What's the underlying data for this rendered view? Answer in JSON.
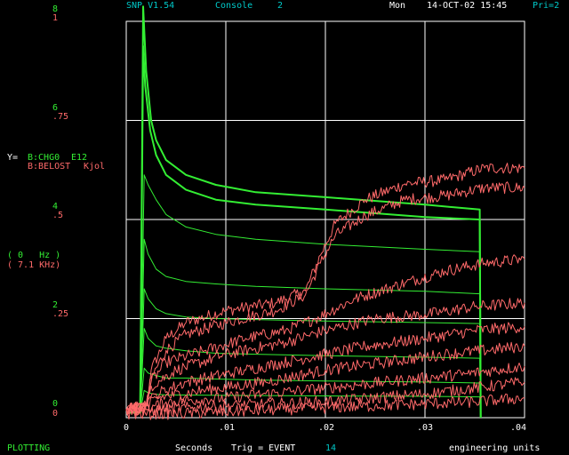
{
  "header": {
    "program": "SNP V1.54",
    "console_label": "Console",
    "console_num": "2",
    "day": "Mon",
    "datetime": "14-OCT-02 15:45",
    "priority": "Pri=2"
  },
  "y_left_green": {
    "top": "8",
    "ticks": [
      "6",
      "4",
      "2",
      "0"
    ]
  },
  "y_left_red": {
    "top": "1",
    "ticks": [
      ".75",
      ".5",
      ".25",
      "0"
    ]
  },
  "legend": {
    "prefix": "Y=",
    "ch1": "B:CHG0",
    "ch1_unit": "E12",
    "ch2": "B:BELOST",
    "ch2_unit": "Kjol"
  },
  "freq": {
    "line1": "( 0   Hz )",
    "line2": "( 7.1 KHz)"
  },
  "x_ticks": [
    "0",
    ".01",
    ".02",
    ".03",
    ".04"
  ],
  "footer": {
    "status": "PLOTTING",
    "xlabel": "Seconds",
    "trig": "Trig = EVENT",
    "event": "14",
    "units": "engineering units"
  },
  "chart_data": {
    "type": "line",
    "xlabel": "Seconds",
    "xlim": [
      0,
      0.04
    ],
    "y_left_green_lim": [
      0,
      8
    ],
    "y_left_red_lim": [
      0,
      1
    ],
    "grid": true,
    "background": "#000000",
    "series": [
      {
        "name": "B:CHG0",
        "unit": "E12",
        "color": "#33ee33",
        "axis": "left-green",
        "traces": [
          [
            [
              0,
              0.1
            ],
            [
              0.0014,
              0.1
            ],
            [
              0.0017,
              7.5
            ],
            [
              0.0019,
              6.7
            ],
            [
              0.0024,
              5.8
            ],
            [
              0.003,
              5.3
            ],
            [
              0.004,
              4.9
            ],
            [
              0.006,
              4.6
            ],
            [
              0.009,
              4.4
            ],
            [
              0.013,
              4.3
            ],
            [
              0.02,
              4.2
            ],
            [
              0.03,
              4.05
            ],
            [
              0.0355,
              4.0
            ],
            [
              0.0356,
              0
            ]
          ],
          [
            [
              0,
              0.1
            ],
            [
              0.0014,
              0.1
            ],
            [
              0.0017,
              8.3
            ],
            [
              0.002,
              7.0
            ],
            [
              0.0025,
              6.0
            ],
            [
              0.003,
              5.6
            ],
            [
              0.004,
              5.2
            ],
            [
              0.006,
              4.9
            ],
            [
              0.009,
              4.7
            ],
            [
              0.013,
              4.55
            ],
            [
              0.02,
              4.45
            ],
            [
              0.03,
              4.3
            ],
            [
              0.0355,
              4.2
            ],
            [
              0.0356,
              0
            ]
          ],
          [
            [
              0,
              0.1
            ],
            [
              0.0014,
              0.1
            ],
            [
              0.0018,
              4.9
            ],
            [
              0.0022,
              4.7
            ],
            [
              0.003,
              4.4
            ],
            [
              0.004,
              4.1
            ],
            [
              0.006,
              3.85
            ],
            [
              0.009,
              3.7
            ],
            [
              0.013,
              3.6
            ],
            [
              0.02,
              3.5
            ],
            [
              0.03,
              3.4
            ],
            [
              0.0355,
              3.35
            ],
            [
              0.0356,
              0
            ]
          ],
          [
            [
              0,
              0.1
            ],
            [
              0.0014,
              0.1
            ],
            [
              0.0018,
              3.6
            ],
            [
              0.0022,
              3.3
            ],
            [
              0.003,
              3.0
            ],
            [
              0.004,
              2.85
            ],
            [
              0.006,
              2.75
            ],
            [
              0.009,
              2.7
            ],
            [
              0.013,
              2.65
            ],
            [
              0.02,
              2.6
            ],
            [
              0.03,
              2.55
            ],
            [
              0.0355,
              2.5
            ],
            [
              0.0356,
              0
            ]
          ],
          [
            [
              0,
              0.1
            ],
            [
              0.0014,
              0.1
            ],
            [
              0.0018,
              2.6
            ],
            [
              0.0022,
              2.4
            ],
            [
              0.003,
              2.2
            ],
            [
              0.004,
              2.1
            ],
            [
              0.006,
              2.03
            ],
            [
              0.009,
              2.0
            ],
            [
              0.013,
              1.98
            ],
            [
              0.02,
              1.95
            ],
            [
              0.03,
              1.92
            ],
            [
              0.0355,
              1.9
            ],
            [
              0.0356,
              0
            ]
          ],
          [
            [
              0,
              0.1
            ],
            [
              0.0014,
              0.1
            ],
            [
              0.0018,
              1.8
            ],
            [
              0.0022,
              1.6
            ],
            [
              0.003,
              1.45
            ],
            [
              0.004,
              1.4
            ],
            [
              0.006,
              1.35
            ],
            [
              0.009,
              1.3
            ],
            [
              0.013,
              1.28
            ],
            [
              0.02,
              1.25
            ],
            [
              0.03,
              1.22
            ],
            [
              0.0355,
              1.2
            ],
            [
              0.0356,
              0
            ]
          ],
          [
            [
              0,
              0.1
            ],
            [
              0.0014,
              0.1
            ],
            [
              0.0018,
              1.0
            ],
            [
              0.0022,
              0.9
            ],
            [
              0.003,
              0.85
            ],
            [
              0.004,
              0.8
            ],
            [
              0.006,
              0.8
            ],
            [
              0.009,
              0.78
            ],
            [
              0.013,
              0.76
            ],
            [
              0.02,
              0.74
            ],
            [
              0.03,
              0.72
            ],
            [
              0.0355,
              0.7
            ],
            [
              0.0356,
              0
            ]
          ],
          [
            [
              0,
              0.1
            ],
            [
              0.0014,
              0.1
            ],
            [
              0.0018,
              0.55
            ],
            [
              0.0022,
              0.5
            ],
            [
              0.003,
              0.47
            ],
            [
              0.004,
              0.46
            ],
            [
              0.01,
              0.45
            ],
            [
              0.02,
              0.44
            ],
            [
              0.03,
              0.43
            ],
            [
              0.0355,
              0.42
            ],
            [
              0.0356,
              0
            ]
          ]
        ]
      },
      {
        "name": "B:BELOST",
        "unit": "Kjol",
        "color": "#ff6a6a",
        "axis": "left-red",
        "traces": [
          [
            [
              0,
              0.02
            ],
            [
              0.002,
              0.03
            ],
            [
              0.0025,
              0.12
            ],
            [
              0.004,
              0.2
            ],
            [
              0.006,
              0.24
            ],
            [
              0.01,
              0.27
            ],
            [
              0.015,
              0.29
            ],
            [
              0.018,
              0.32
            ],
            [
              0.0195,
              0.41
            ],
            [
              0.021,
              0.49
            ],
            [
              0.024,
              0.55
            ],
            [
              0.028,
              0.59
            ],
            [
              0.032,
              0.6
            ],
            [
              0.036,
              0.63
            ],
            [
              0.04,
              0.63
            ]
          ],
          [
            [
              0,
              0.02
            ],
            [
              0.002,
              0.03
            ],
            [
              0.0025,
              0.1
            ],
            [
              0.004,
              0.17
            ],
            [
              0.006,
              0.21
            ],
            [
              0.01,
              0.24
            ],
            [
              0.015,
              0.27
            ],
            [
              0.018,
              0.31
            ],
            [
              0.0195,
              0.39
            ],
            [
              0.021,
              0.46
            ],
            [
              0.024,
              0.51
            ],
            [
              0.028,
              0.55
            ],
            [
              0.032,
              0.56
            ],
            [
              0.036,
              0.58
            ],
            [
              0.04,
              0.58
            ]
          ],
          [
            [
              0,
              0.02
            ],
            [
              0.002,
              0.03
            ],
            [
              0.0025,
              0.09
            ],
            [
              0.004,
              0.14
            ],
            [
              0.008,
              0.17
            ],
            [
              0.012,
              0.2
            ],
            [
              0.016,
              0.22
            ],
            [
              0.019,
              0.25
            ],
            [
              0.023,
              0.3
            ],
            [
              0.028,
              0.34
            ],
            [
              0.032,
              0.37
            ],
            [
              0.036,
              0.39
            ],
            [
              0.04,
              0.4
            ]
          ],
          [
            [
              0,
              0.02
            ],
            [
              0.002,
              0.03
            ],
            [
              0.0025,
              0.08
            ],
            [
              0.005,
              0.12
            ],
            [
              0.01,
              0.16
            ],
            [
              0.016,
              0.19
            ],
            [
              0.02,
              0.22
            ],
            [
              0.025,
              0.25
            ],
            [
              0.03,
              0.26
            ],
            [
              0.035,
              0.28
            ],
            [
              0.04,
              0.29
            ]
          ],
          [
            [
              0,
              0.02
            ],
            [
              0.002,
              0.03
            ],
            [
              0.003,
              0.06
            ],
            [
              0.006,
              0.09
            ],
            [
              0.012,
              0.12
            ],
            [
              0.018,
              0.15
            ],
            [
              0.024,
              0.18
            ],
            [
              0.03,
              0.2
            ],
            [
              0.035,
              0.22
            ],
            [
              0.04,
              0.23
            ]
          ],
          [
            [
              0,
              0.02
            ],
            [
              0.002,
              0.03
            ],
            [
              0.003,
              0.05
            ],
            [
              0.008,
              0.07
            ],
            [
              0.014,
              0.09
            ],
            [
              0.02,
              0.12
            ],
            [
              0.026,
              0.14
            ],
            [
              0.032,
              0.16
            ],
            [
              0.04,
              0.18
            ]
          ],
          [
            [
              0,
              0.02
            ],
            [
              0.002,
              0.02
            ],
            [
              0.004,
              0.04
            ],
            [
              0.01,
              0.05
            ],
            [
              0.018,
              0.07
            ],
            [
              0.026,
              0.09
            ],
            [
              0.034,
              0.11
            ],
            [
              0.04,
              0.13
            ]
          ],
          [
            [
              0,
              0.02
            ],
            [
              0.003,
              0.02
            ],
            [
              0.01,
              0.03
            ],
            [
              0.02,
              0.04
            ],
            [
              0.03,
              0.06
            ],
            [
              0.04,
              0.09
            ]
          ],
          [
            [
              0,
              0.01
            ],
            [
              0.005,
              0.01
            ],
            [
              0.015,
              0.02
            ],
            [
              0.025,
              0.03
            ],
            [
              0.035,
              0.04
            ],
            [
              0.04,
              0.05
            ]
          ]
        ]
      }
    ]
  }
}
